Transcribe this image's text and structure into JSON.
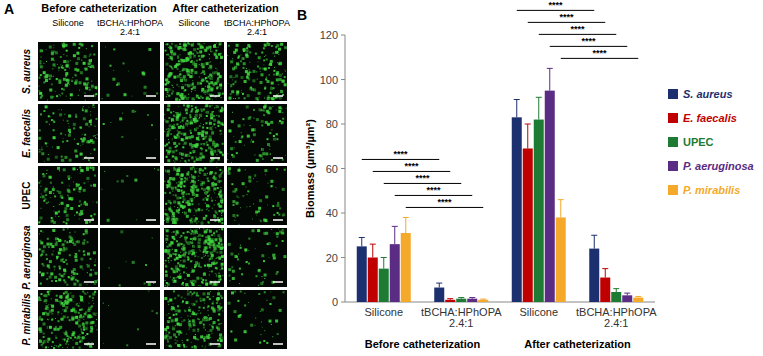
{
  "panel_a": {
    "label": "A",
    "group_labels": [
      "Before catheterization",
      "After catheterization"
    ],
    "column_labels": [
      "Silicone",
      "tBCHA:HPhOPA 2.4:1"
    ],
    "row_labels": [
      "S. aureus",
      "E. faecalis",
      "UPEC",
      "P. aeruginosa",
      "P. mirabilis"
    ]
  },
  "chart_data": {
    "type": "bar",
    "panel_label": "B",
    "y_label": "Biomass (µm³/µm²)",
    "categories": [
      "Silicone",
      "tBCHA:HPhOPA 2.4:1",
      "Silicone",
      "tBCHA:HPhOPA 2.4:1"
    ],
    "group_labels": [
      "Before catheterization",
      "After catheterization"
    ],
    "series": [
      {
        "name": "S. aureus",
        "color": "#1c2f6e",
        "values": [
          25,
          6.5,
          83,
          24
        ],
        "errors": [
          4,
          2,
          8,
          6
        ]
      },
      {
        "name": "E. faecalis",
        "color": "#c00000",
        "values": [
          20,
          1,
          69,
          11
        ],
        "errors": [
          6,
          0.5,
          11,
          4
        ]
      },
      {
        "name": "UPEC",
        "color": "#1e7b34",
        "values": [
          15,
          1.5,
          82,
          4.5
        ],
        "errors": [
          5,
          0.5,
          10,
          1.5
        ]
      },
      {
        "name": "P. aeruginosa",
        "color": "#5b2c83",
        "values": [
          26,
          1.5,
          95,
          3
        ],
        "errors": [
          8,
          0.5,
          10,
          1
        ]
      },
      {
        "name": "P. mirabilis",
        "color": "#f4a92a",
        "values": [
          31,
          1,
          38,
          2
        ],
        "errors": [
          7,
          0.3,
          8,
          0.5
        ]
      }
    ],
    "significance": [
      {
        "series": 0,
        "from": 0,
        "to": 1,
        "label": "****"
      },
      {
        "series": 1,
        "from": 0,
        "to": 1,
        "label": "****"
      },
      {
        "series": 2,
        "from": 0,
        "to": 1,
        "label": "****"
      },
      {
        "series": 3,
        "from": 0,
        "to": 1,
        "label": "****"
      },
      {
        "series": 4,
        "from": 0,
        "to": 1,
        "label": "****"
      },
      {
        "series": 0,
        "from": 2,
        "to": 3,
        "label": "****"
      },
      {
        "series": 1,
        "from": 2,
        "to": 3,
        "label": "****"
      },
      {
        "series": 2,
        "from": 2,
        "to": 3,
        "label": "****"
      },
      {
        "series": 3,
        "from": 2,
        "to": 3,
        "label": "****"
      },
      {
        "series": 4,
        "from": 2,
        "to": 3,
        "label": "****"
      }
    ],
    "ylim": [
      0,
      120
    ],
    "yticks": [
      0,
      20,
      40,
      60,
      80,
      100,
      120
    ],
    "grid": false,
    "legend": "right"
  }
}
